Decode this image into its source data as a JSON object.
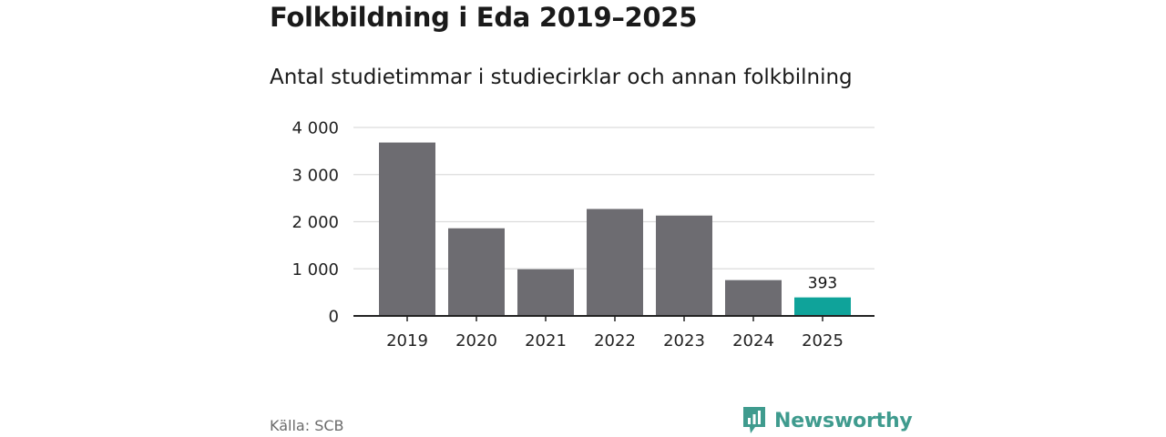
{
  "title": "Folkbildning i Eda 2019–2025",
  "subtitle": "Antal studietimmar i studiecirklar och annan folkbilning",
  "source": "Källa: SCB",
  "brand": {
    "name": "Newsworthy",
    "color": "#3f9b8e",
    "icon": "bar-chart-badge-icon"
  },
  "colors": {
    "bar": "#6d6c71",
    "highlight": "#0fa39a",
    "grid": "#dcdcdc",
    "axis": "#222222"
  },
  "chart_data": {
    "type": "bar",
    "categories": [
      "2019",
      "2020",
      "2021",
      "2022",
      "2023",
      "2024",
      "2025"
    ],
    "values": [
      3680,
      1860,
      990,
      2270,
      2130,
      760,
      393
    ],
    "highlight_index": 6,
    "data_labels": [
      {
        "index": 6,
        "text": "393"
      }
    ],
    "y_ticks": [
      0,
      1000,
      2000,
      3000,
      4000
    ],
    "y_tick_labels": [
      "0",
      "1 000",
      "2 000",
      "3 000",
      "4 000"
    ],
    "ylim": [
      0,
      4000
    ],
    "grid": true,
    "xlabel": "",
    "ylabel": ""
  }
}
